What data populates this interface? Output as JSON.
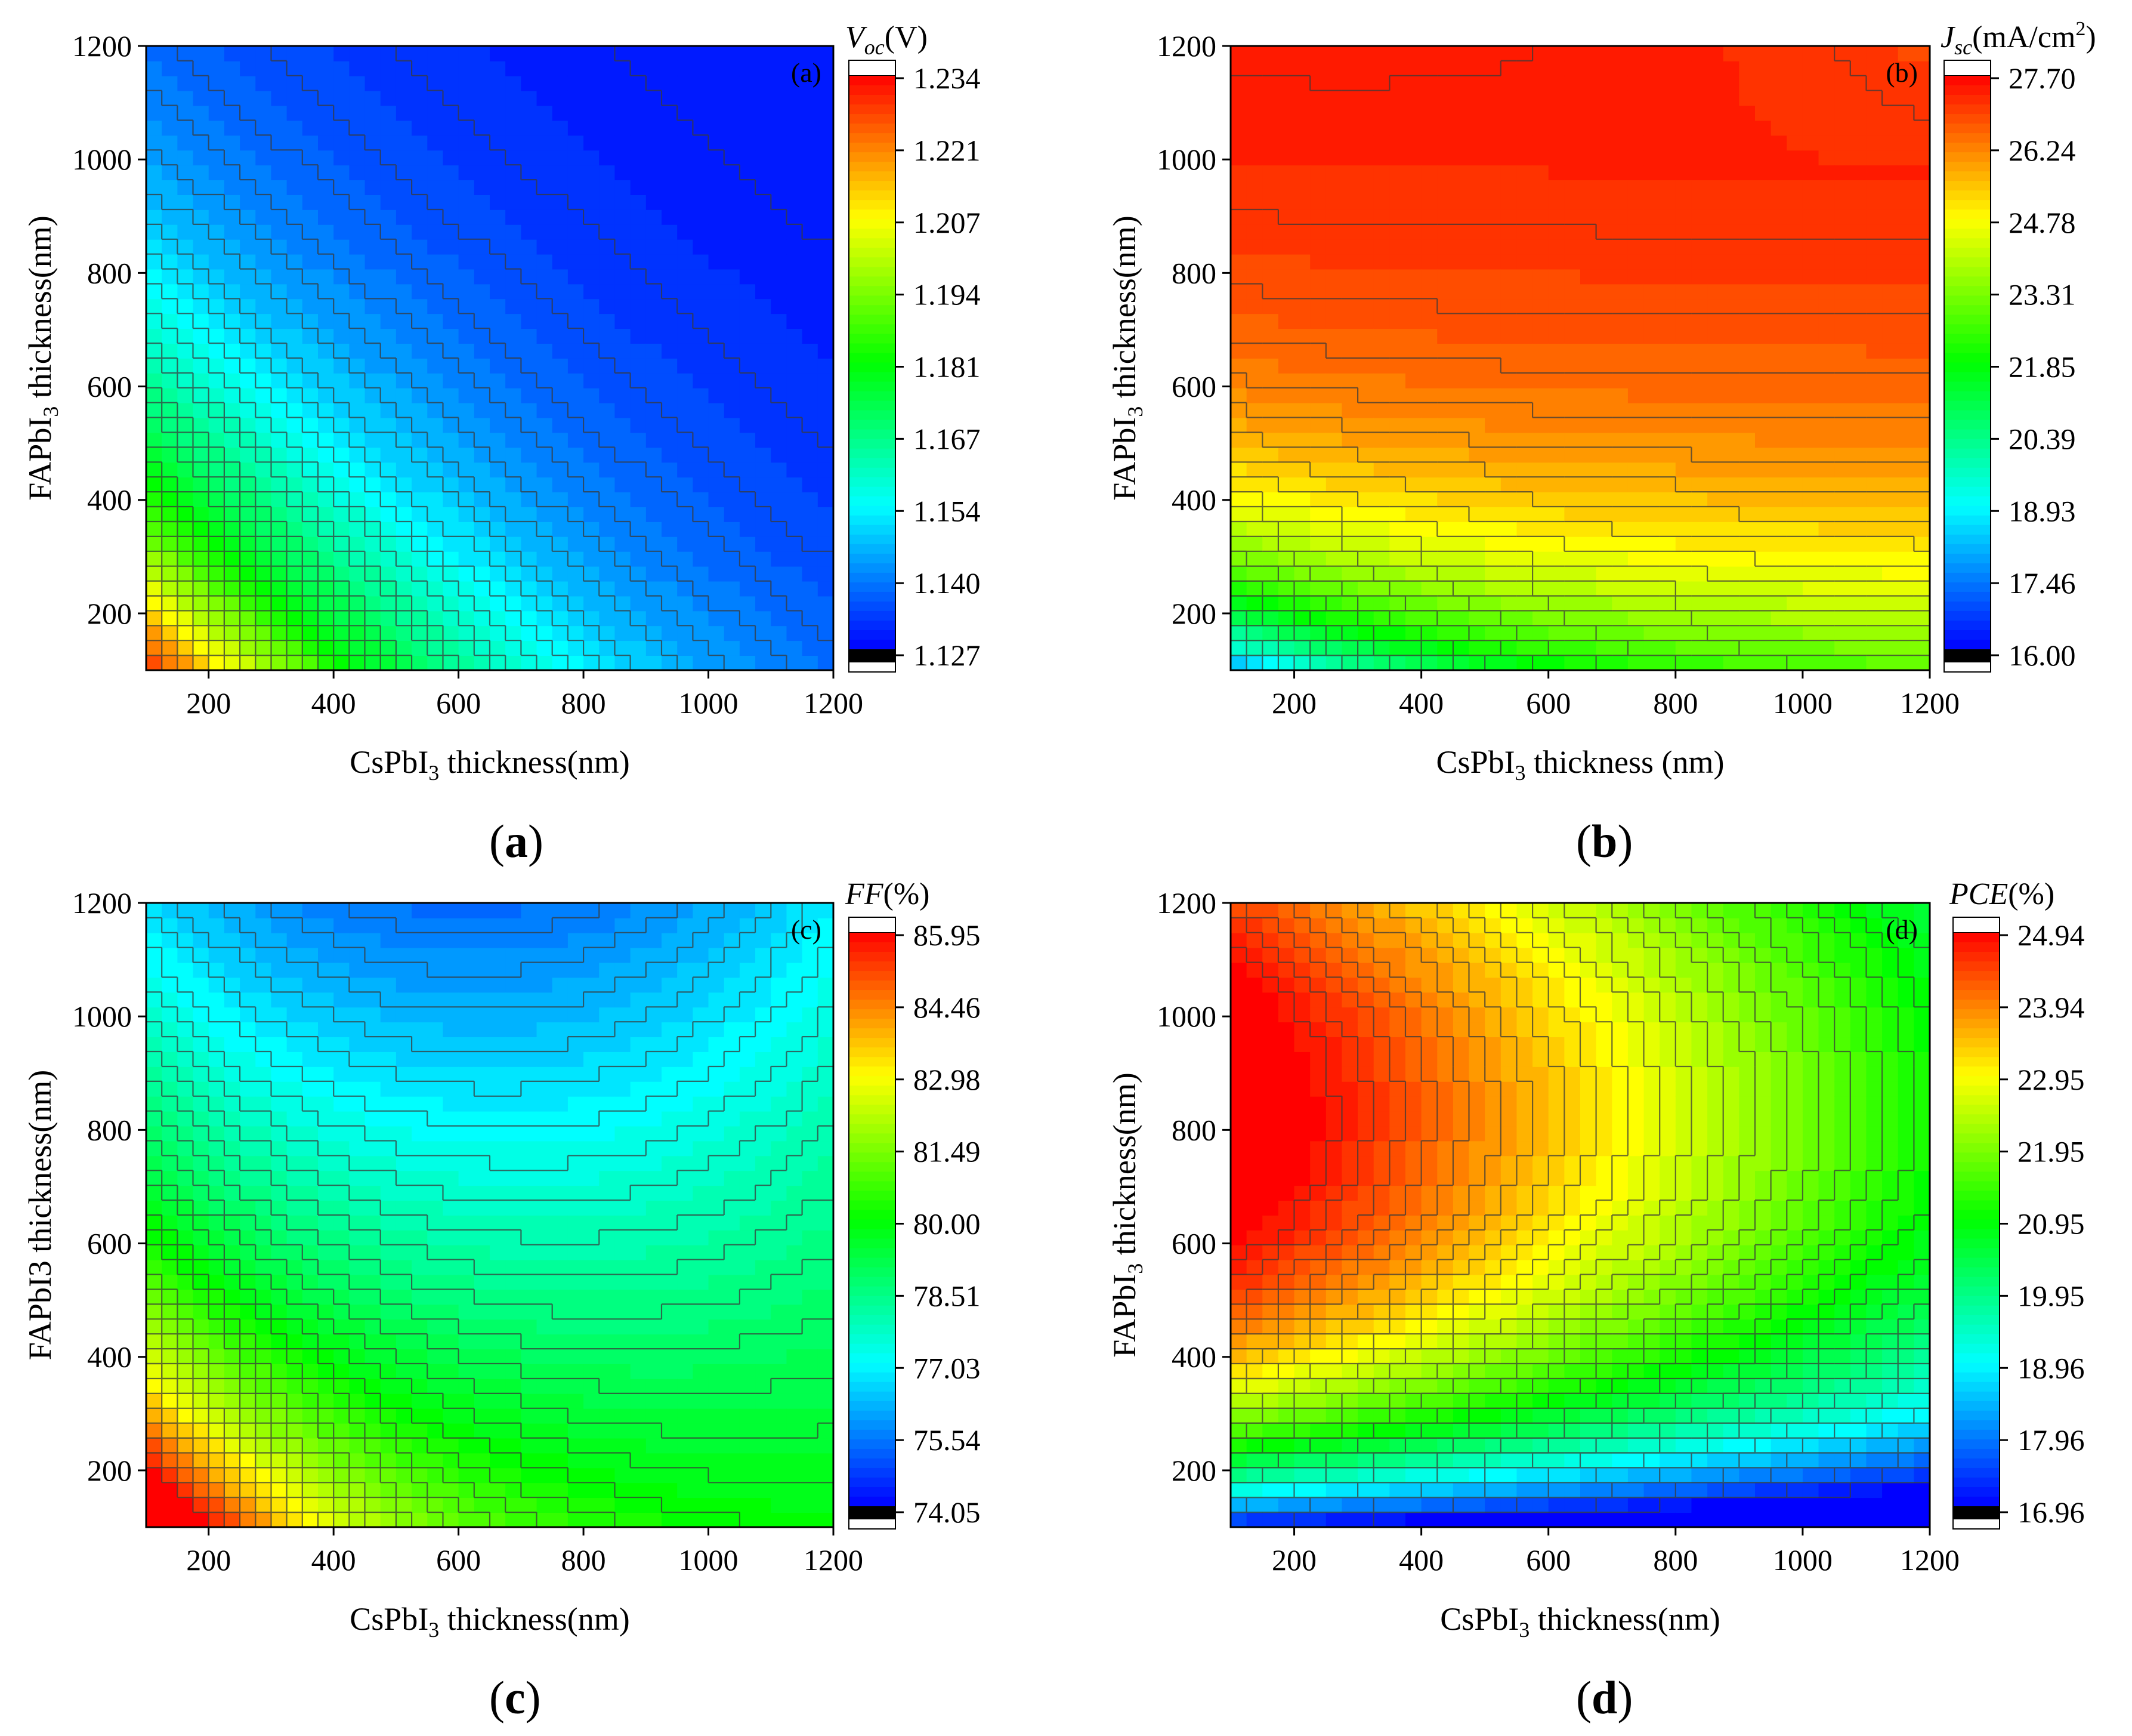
{
  "figure": {
    "captions": [
      "a",
      "b",
      "c",
      "d"
    ]
  },
  "chart_data": [
    {
      "type": "heatmap",
      "panel": "a",
      "inner_label": "(a)",
      "title_var": "V",
      "title_sub": "oc",
      "title_unit": "(V)",
      "xlabel": "CsPbI",
      "xlabel_sub": "3",
      "xlabel_rest": " thickness(nm)",
      "ylabel": "FAPbI",
      "ylabel_sub": "3",
      "ylabel_rest": " thickness(nm)",
      "xlim": [
        100,
        1200
      ],
      "ylim": [
        100,
        1200
      ],
      "xticks": [
        200,
        400,
        600,
        800,
        1000,
        1200
      ],
      "yticks": [
        200,
        400,
        600,
        800,
        1000,
        1200
      ],
      "colorbar_ticks": [
        "1.234",
        "1.221",
        "1.207",
        "1.194",
        "1.181",
        "1.167",
        "1.154",
        "1.140",
        "1.127"
      ],
      "range": [
        1.127,
        1.234
      ],
      "levels": 40,
      "colormap": [
        "#0000ff",
        "#0080ff",
        "#00ffff",
        "#00ff80",
        "#00ff00",
        "#80ff00",
        "#ffff00",
        "#ff8000",
        "#ff0000"
      ]
    },
    {
      "type": "heatmap",
      "panel": "b",
      "inner_label": "(b)",
      "title_var": "J",
      "title_sub": "sc",
      "title_unit": "(mA/cm",
      "title_sup": "2",
      "title_close": ")",
      "xlabel": "CsPbI",
      "xlabel_sub": "3",
      "xlabel_rest": " thickness (nm)",
      "ylabel": "FAPbI",
      "ylabel_sub": "3",
      "ylabel_rest": " thickness(nm)",
      "xlim": [
        100,
        1200
      ],
      "ylim": [
        100,
        1200
      ],
      "xticks": [
        200,
        400,
        600,
        800,
        1000,
        1200
      ],
      "yticks": [
        200,
        400,
        600,
        800,
        1000,
        1200
      ],
      "colorbar_ticks": [
        "27.70",
        "26.24",
        "24.78",
        "23.31",
        "21.85",
        "20.39",
        "18.93",
        "17.46",
        "16.00"
      ],
      "range": [
        16.0,
        27.7
      ],
      "levels": 40,
      "colormap": [
        "#0000ff",
        "#0080ff",
        "#00ffff",
        "#00ff80",
        "#00ff00",
        "#80ff00",
        "#ffff00",
        "#ff8000",
        "#ff0000"
      ]
    },
    {
      "type": "heatmap",
      "panel": "c",
      "inner_label": "(c)",
      "title_var": "FF",
      "title_unit": "(%)",
      "xlabel": "CsPbI",
      "xlabel_sub": "3",
      "xlabel_rest": " thickness(nm)",
      "ylabel": "FAPbI3 thickness(nm)",
      "xlim": [
        100,
        1200
      ],
      "ylim": [
        100,
        1200
      ],
      "xticks": [
        200,
        400,
        600,
        800,
        1000,
        1200
      ],
      "yticks": [
        200,
        400,
        600,
        800,
        1000,
        1200
      ],
      "colorbar_ticks": [
        "85.95",
        "84.46",
        "82.98",
        "81.49",
        "80.00",
        "78.51",
        "77.03",
        "75.54",
        "74.05"
      ],
      "range": [
        74.05,
        85.95
      ],
      "levels": 40,
      "colormap": [
        "#0000ff",
        "#0080ff",
        "#00ffff",
        "#00ff80",
        "#00ff00",
        "#80ff00",
        "#ffff00",
        "#ff8000",
        "#ff0000"
      ]
    },
    {
      "type": "heatmap",
      "panel": "d",
      "inner_label": "(d)",
      "title_var": "PCE",
      "title_unit": "(%)",
      "xlabel": "CsPbI",
      "xlabel_sub": "3",
      "xlabel_rest": " thickness(nm)",
      "ylabel": "FAPbI",
      "ylabel_sub": "3",
      "ylabel_rest": " thickness(nm)",
      "xlim": [
        100,
        1200
      ],
      "ylim": [
        100,
        1200
      ],
      "xticks": [
        200,
        400,
        600,
        800,
        1000,
        1200
      ],
      "yticks": [
        200,
        400,
        600,
        800,
        1000,
        1200
      ],
      "colorbar_ticks": [
        "24.94",
        "23.94",
        "22.95",
        "21.95",
        "20.95",
        "19.95",
        "18.96",
        "17.96",
        "16.96"
      ],
      "range": [
        16.96,
        24.94
      ],
      "levels": 40,
      "colormap": [
        "#0000ff",
        "#0080ff",
        "#00ffff",
        "#00ff80",
        "#00ff00",
        "#80ff00",
        "#ffff00",
        "#ff8000",
        "#ff0000"
      ]
    }
  ]
}
